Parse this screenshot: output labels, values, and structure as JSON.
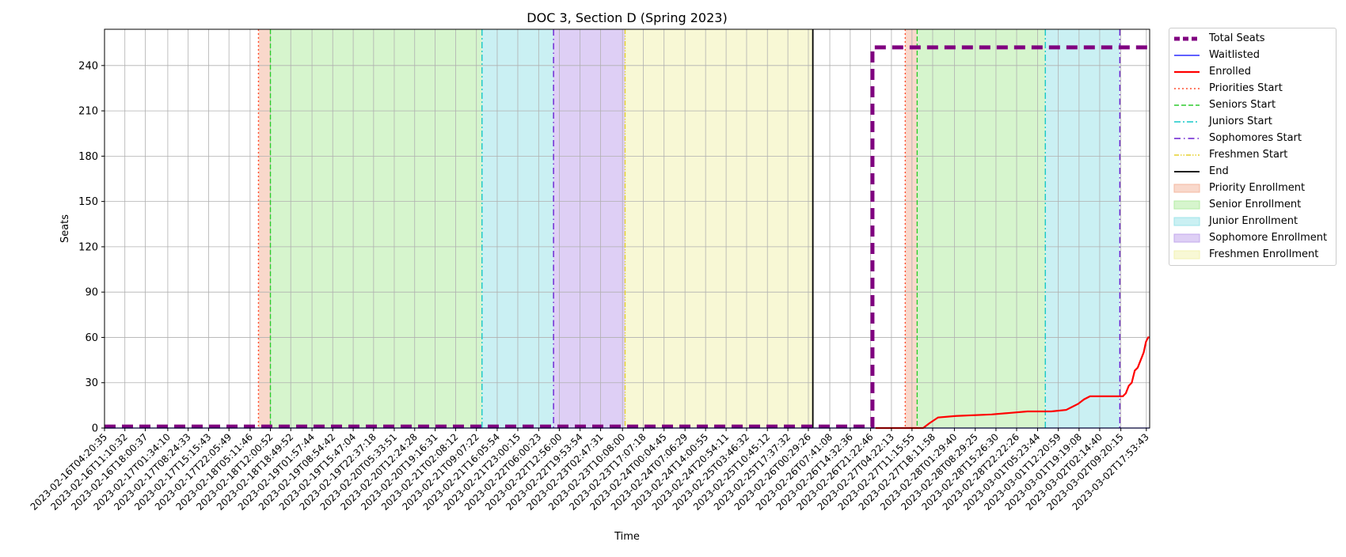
{
  "chart_data": {
    "type": "line",
    "title": "DOC 3, Section D (Spring 2023)",
    "xlabel": "Time",
    "ylabel": "Seats",
    "ylim": [
      0,
      264
    ],
    "yticks": [
      0,
      30,
      60,
      90,
      120,
      150,
      180,
      210,
      240
    ],
    "grid": true,
    "legend_position": "outside-right",
    "x_axis": {
      "type": "date",
      "min": "2023-02-16T04:20:35",
      "max": "2023-03-02T19:00:00",
      "tick_labels": [
        "2023-02-16T04:20:35",
        "2023-02-16T11:10:32",
        "2023-02-16T18:00:37",
        "2023-02-17T01:34:10",
        "2023-02-17T08:24:33",
        "2023-02-17T15:15:43",
        "2023-02-17T22:05:49",
        "2023-02-18T05:11:46",
        "2023-02-18T12:00:52",
        "2023-02-18T18:49:52",
        "2023-02-19T01:57:44",
        "2023-02-19T08:54:42",
        "2023-02-19T15:47:04",
        "2023-02-19T22:37:18",
        "2023-02-20T05:33:51",
        "2023-02-20T12:24:28",
        "2023-02-20T19:16:31",
        "2023-02-21T02:08:12",
        "2023-02-21T09:07:22",
        "2023-02-21T16:05:54",
        "2023-02-21T23:00:15",
        "2023-02-22T06:00:23",
        "2023-02-22T12:56:00",
        "2023-02-22T19:53:54",
        "2023-02-23T02:47:31",
        "2023-02-23T10:08:00",
        "2023-02-23T17:07:18",
        "2023-02-24T00:04:45",
        "2023-02-24T07:06:29",
        "2023-02-24T14:00:55",
        "2023-02-24T20:54:11",
        "2023-02-25T03:46:32",
        "2023-02-25T10:45:12",
        "2023-02-25T17:37:32",
        "2023-02-26T00:29:26",
        "2023-02-26T07:41:08",
        "2023-02-26T14:32:36",
        "2023-02-26T21:22:46",
        "2023-02-27T04:22:13",
        "2023-02-27T11:15:55",
        "2023-02-27T18:11:58",
        "2023-02-28T01:29:40",
        "2023-02-28T08:29:25",
        "2023-02-28T15:26:30",
        "2023-02-28T22:22:26",
        "2023-03-01T05:23:44",
        "2023-03-01T12:20:59",
        "2023-03-01T19:19:08",
        "2023-03-02T02:14:40",
        "2023-03-02T09:20:15",
        "2023-03-02T17:53:43"
      ]
    },
    "phase_markers": [
      {
        "name": "Priorities Start",
        "x": "2023-02-18T08:00:00",
        "color": "#ff4d2e",
        "dash": "2,3"
      },
      {
        "name": "Seniors Start",
        "x": "2023-02-18T12:00:00",
        "color": "#2ecc2e",
        "dash": "6,3"
      },
      {
        "name": "Juniors Start",
        "x": "2023-02-21T11:00:00",
        "color": "#17c8c8",
        "dash": "8,3,2,3"
      },
      {
        "name": "Sophomores Start",
        "x": "2023-02-22T11:00:00",
        "color": "#6a1fd1",
        "dash": "8,4,1.5,4"
      },
      {
        "name": "Freshmen Start",
        "x": "2023-02-23T11:00:00",
        "color": "#e6d12e",
        "dash": "6,2,1.5,2,1.5,2"
      },
      {
        "name": "End",
        "x": "2023-02-26T02:00:00",
        "color": "#000000",
        "dash": ""
      },
      {
        "name": "Priorities Start",
        "x": "2023-02-27T09:00:00",
        "color": "#ff4d2e",
        "dash": "2,3"
      },
      {
        "name": "Seniors Start",
        "x": "2023-02-27T13:00:00",
        "color": "#2ecc2e",
        "dash": "6,3"
      },
      {
        "name": "Juniors Start",
        "x": "2023-03-01T08:00:00",
        "color": "#17c8c8",
        "dash": "8,3,2,3"
      },
      {
        "name": "Sophomores Start",
        "x": "2023-03-02T09:00:00",
        "color": "#6a1fd1",
        "dash": "8,4,1.5,4"
      }
    ],
    "phase_spans": [
      {
        "name": "Priority Enrollment",
        "start": "2023-02-18T08:00:00",
        "end": "2023-02-18T12:00:00",
        "color": "#f4b8a0"
      },
      {
        "name": "Senior Enrollment",
        "start": "2023-02-18T12:00:00",
        "end": "2023-02-21T11:00:00",
        "color": "#b4eca4"
      },
      {
        "name": "Junior Enrollment",
        "start": "2023-02-21T11:00:00",
        "end": "2023-02-22T11:00:00",
        "color": "#9ee4ea"
      },
      {
        "name": "Sophomore Enrollment",
        "start": "2023-02-22T11:00:00",
        "end": "2023-02-23T11:00:00",
        "color": "#c3a8ec"
      },
      {
        "name": "Freshmen Enrollment",
        "start": "2023-02-23T11:00:00",
        "end": "2023-02-26T02:00:00",
        "color": "#f2f2b2"
      },
      {
        "name": "Priority Enrollment",
        "start": "2023-02-27T09:00:00",
        "end": "2023-02-27T13:00:00",
        "color": "#f4b8a0"
      },
      {
        "name": "Senior Enrollment",
        "start": "2023-02-27T13:00:00",
        "end": "2023-03-01T08:00:00",
        "color": "#b4eca4"
      },
      {
        "name": "Junior Enrollment",
        "start": "2023-03-01T08:00:00",
        "end": "2023-03-02T09:00:00",
        "color": "#9ee4ea"
      }
    ],
    "series": [
      {
        "name": "Total Seats",
        "color": "#800080",
        "dash": "14,8",
        "width": 5,
        "step": true,
        "points": [
          [
            "2023-02-16T04:20:35",
            1
          ],
          [
            "2023-02-26T22:00:00",
            1
          ],
          [
            "2023-02-26T22:00:00",
            252
          ],
          [
            "2023-03-02T19:00:00",
            252
          ]
        ]
      },
      {
        "name": "Waitlisted",
        "color": "#0000ff",
        "dash": "",
        "width": 1.2,
        "step": true,
        "points": [
          [
            "2023-02-16T04:20:35",
            0
          ],
          [
            "2023-03-02T19:00:00",
            0
          ]
        ]
      },
      {
        "name": "Enrolled",
        "color": "#ff0000",
        "dash": "",
        "width": 2.2,
        "step": true,
        "points": [
          [
            "2023-02-26T23:00:00",
            0
          ],
          [
            "2023-02-27T15:00:00",
            0
          ],
          [
            "2023-02-27T17:00:00",
            3
          ],
          [
            "2023-02-27T20:00:00",
            7
          ],
          [
            "2023-02-28T02:00:00",
            8
          ],
          [
            "2023-02-28T14:00:00",
            9
          ],
          [
            "2023-02-28T20:00:00",
            10
          ],
          [
            "2023-03-01T02:00:00",
            11
          ],
          [
            "2023-03-01T10:00:00",
            11
          ],
          [
            "2023-03-01T15:00:00",
            12
          ],
          [
            "2023-03-01T17:00:00",
            14
          ],
          [
            "2023-03-01T19:00:00",
            16
          ],
          [
            "2023-03-01T21:00:00",
            19
          ],
          [
            "2023-03-01T23:00:00",
            21
          ],
          [
            "2023-03-02T10:00:00",
            21
          ],
          [
            "2023-03-02T11:00:00",
            23
          ],
          [
            "2023-03-02T12:00:00",
            28
          ],
          [
            "2023-03-02T13:00:00",
            30
          ],
          [
            "2023-03-02T14:00:00",
            38
          ],
          [
            "2023-03-02T15:00:00",
            40
          ],
          [
            "2023-03-02T16:00:00",
            45
          ],
          [
            "2023-03-02T17:00:00",
            50
          ],
          [
            "2023-03-02T17:45:00",
            57
          ],
          [
            "2023-03-02T18:30:00",
            60
          ],
          [
            "2023-03-02T19:00:00",
            60
          ]
        ]
      }
    ],
    "legend": [
      {
        "label": "Total Seats",
        "kind": "line",
        "color": "#800080",
        "dash": "7,4",
        "width": 5
      },
      {
        "label": "Waitlisted",
        "kind": "line",
        "color": "#0000ff",
        "dash": "",
        "width": 1.2
      },
      {
        "label": "Enrolled",
        "kind": "line",
        "color": "#ff0000",
        "dash": "",
        "width": 2.2
      },
      {
        "label": "Priorities Start",
        "kind": "line",
        "color": "#ff4d2e",
        "dash": "2,3",
        "width": 1.5
      },
      {
        "label": "Seniors Start",
        "kind": "line",
        "color": "#2ecc2e",
        "dash": "6,3",
        "width": 1.5
      },
      {
        "label": "Juniors Start",
        "kind": "line",
        "color": "#17c8c8",
        "dash": "8,3,2,3",
        "width": 1.5
      },
      {
        "label": "Sophomores Start",
        "kind": "line",
        "color": "#6a1fd1",
        "dash": "8,4,1.5,4",
        "width": 1.5
      },
      {
        "label": "Freshmen Start",
        "kind": "line",
        "color": "#e6d12e",
        "dash": "6,2,1.5,2,1.5,2",
        "width": 1.5
      },
      {
        "label": "End",
        "kind": "line",
        "color": "#000000",
        "dash": "",
        "width": 1.8
      },
      {
        "label": "Priority Enrollment",
        "kind": "patch",
        "color": "#f4b8a0"
      },
      {
        "label": "Senior Enrollment",
        "kind": "patch",
        "color": "#b4eca4"
      },
      {
        "label": "Junior Enrollment",
        "kind": "patch",
        "color": "#9ee4ea"
      },
      {
        "label": "Sophomore Enrollment",
        "kind": "patch",
        "color": "#c3a8ec"
      },
      {
        "label": "Freshmen Enrollment",
        "kind": "patch",
        "color": "#f2f2b2"
      }
    ]
  }
}
